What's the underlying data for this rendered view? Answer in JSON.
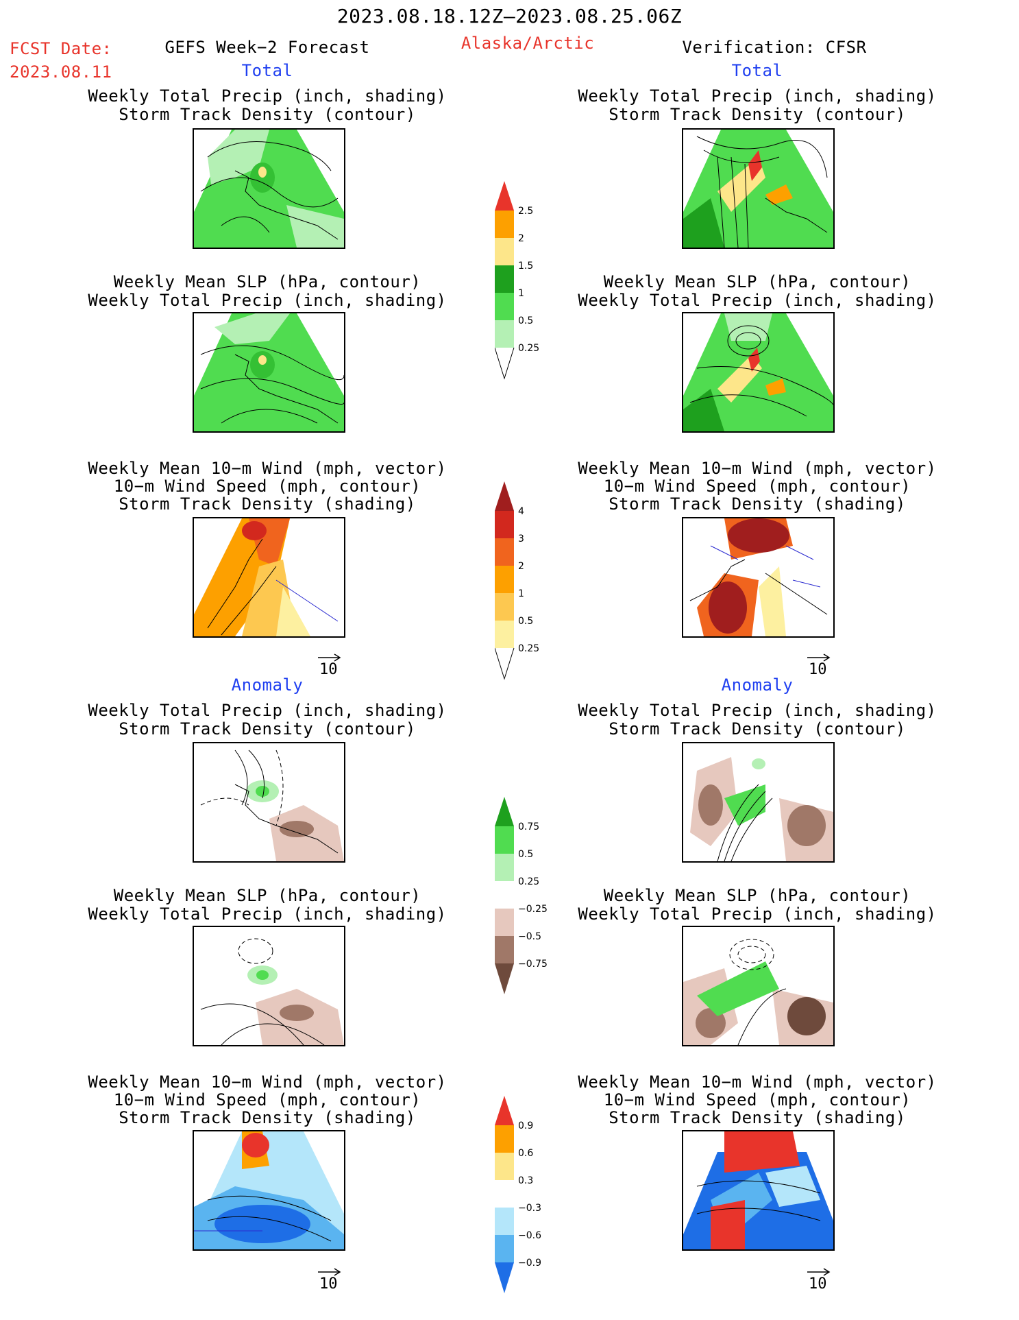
{
  "header": {
    "period": "2023.08.18.12Z–2023.08.25.06Z",
    "fcst_label": "FCST Date:",
    "fcst_date": "2023.08.11",
    "model": "GEFS Week−2 Forecast",
    "region": "Alaska/Arctic",
    "verification": "Verification: CFSR"
  },
  "sections": {
    "total_left": "Total",
    "total_right": "Total",
    "anomaly_left": "Anomaly",
    "anomaly_right": "Anomaly"
  },
  "titles": {
    "precip_track": [
      "Weekly Total Precip (inch, shading)",
      "Storm Track Density (contour)"
    ],
    "slp_precip": [
      "Weekly Mean SLP (hPa, contour)",
      "Weekly Total Precip (inch, shading)"
    ],
    "wind_track": [
      "Weekly Mean 10−m Wind (mph, vector)",
      "10−m Wind Speed (mph, contour)",
      "Storm Track Density (shading)"
    ]
  },
  "vector_ref": "10",
  "colors": {
    "light_green": "#b4f0b4",
    "green": "#50dc50",
    "mid_green": "#34c034",
    "dark_green": "#1ea01e",
    "yellow": "#fde68a",
    "orange": "#fda000",
    "red": "#e8342b",
    "dark_red": "#a01e1e",
    "brown_light": "#e6c8be",
    "brown": "#a07868",
    "brown_dark": "#6e4a3c",
    "blue_light": "#b4e6fa",
    "blue": "#5ab4f0",
    "blue_dark": "#1e6ee6"
  },
  "chart_data": [
    {
      "type": "heatmap",
      "name": "precip_total_colorbar",
      "ticks": [
        "2.5",
        "2",
        "1.5",
        "1",
        "0.5",
        "0.25"
      ],
      "colors": [
        "#e8342b",
        "#fda000",
        "#fde68a",
        "#1ea01e",
        "#34c034",
        "#50dc50",
        "#b4f0b4"
      ]
    },
    {
      "type": "heatmap",
      "name": "storm_track_total_colorbar",
      "ticks": [
        "4",
        "3",
        "2",
        "1",
        "0.5",
        "0.25"
      ],
      "colors": [
        "#a01e1e",
        "#d2281e",
        "#f0641e",
        "#fda000",
        "#fdc850",
        "#fdf0a0",
        "#fffacd"
      ]
    },
    {
      "type": "heatmap",
      "name": "precip_anomaly_colorbar",
      "ticks": [
        "0.75",
        "0.5",
        "0.25",
        "−0.25",
        "−0.5",
        "−0.75"
      ],
      "colors": [
        "#1ea01e",
        "#50dc50",
        "#b4f0b4",
        "#ffffff",
        "#e6c8be",
        "#a07868",
        "#6e4a3c"
      ]
    },
    {
      "type": "heatmap",
      "name": "storm_track_anomaly_colorbar",
      "ticks": [
        "0.9",
        "0.6",
        "0.3",
        "−0.3",
        "−0.6",
        "−0.9"
      ],
      "colors": [
        "#e8342b",
        "#fda000",
        "#fde68a",
        "#ffffff",
        "#b4e6fa",
        "#5ab4f0",
        "#1e6ee6"
      ]
    }
  ]
}
